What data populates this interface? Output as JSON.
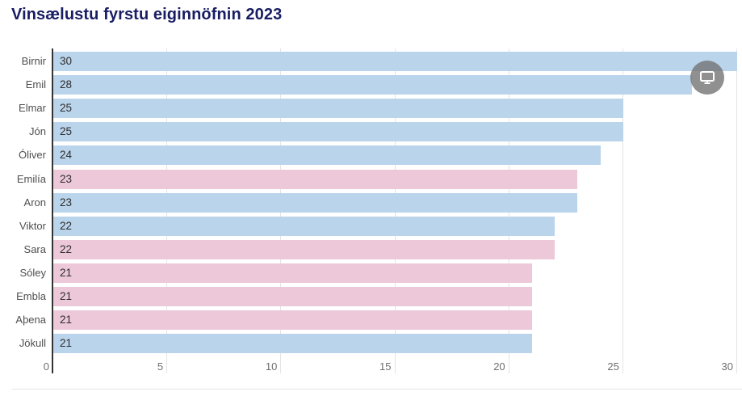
{
  "header": {
    "title": "Vinsælustu fyrstu eiginnöfnin 2023"
  },
  "toolbar": {
    "fullscreen_button": {
      "icon": "monitor-icon"
    }
  },
  "palette": {
    "blue": "#bad4ec",
    "pink": "#edc8d9",
    "title_color": "#191d62",
    "axis_line_color": "#333333",
    "gridline_color": "#e3e3e3"
  },
  "chart_data": {
    "type": "bar",
    "orientation": "horizontal",
    "title": "Vinsælustu fyrstu eiginnöfnin 2023",
    "categories": [
      "Birnir",
      "Emil",
      "Elmar",
      "Jón",
      "Óliver",
      "Emilía",
      "Aron",
      "Viktor",
      "Sara",
      "Sóley",
      "Embla",
      "Aþena",
      "Jökull"
    ],
    "values": [
      30,
      28,
      25,
      25,
      24,
      23,
      23,
      22,
      22,
      21,
      21,
      21,
      21
    ],
    "bar_color_keys": [
      "blue",
      "blue",
      "blue",
      "blue",
      "blue",
      "pink",
      "blue",
      "blue",
      "pink",
      "pink",
      "pink",
      "pink",
      "blue"
    ],
    "value_label_position": "inside-start",
    "xlabel": "",
    "ylabel": "",
    "xlim": [
      0,
      30
    ],
    "xticks": [
      0,
      5,
      10,
      15,
      20,
      25,
      30
    ],
    "grid": true,
    "legend": "none"
  }
}
